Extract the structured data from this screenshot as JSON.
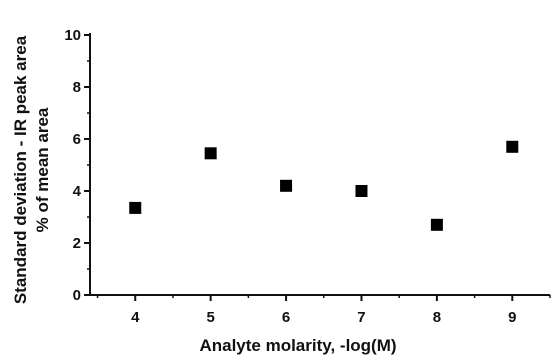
{
  "chart_data": {
    "type": "scatter",
    "xlabel": "Analyte molarity, -log(M)",
    "ylabel_lines": [
      "Standard deviation - IR peak area",
      "% of mean area"
    ],
    "xlim": [
      3.4,
      9.5
    ],
    "ylim": [
      0,
      10
    ],
    "x_ticks": [
      4,
      5,
      6,
      7,
      8,
      9
    ],
    "y_ticks": [
      0,
      2,
      4,
      6,
      8,
      10
    ],
    "grid": false,
    "legend": "none",
    "marker": "square",
    "marker_color": "#000000",
    "series": [
      {
        "points": [
          {
            "x": 4,
            "y": 3.35
          },
          {
            "x": 5,
            "y": 5.45
          },
          {
            "x": 6,
            "y": 4.2
          },
          {
            "x": 7,
            "y": 4.0
          },
          {
            "x": 8,
            "y": 2.7
          },
          {
            "x": 9,
            "y": 5.7
          }
        ]
      }
    ]
  }
}
